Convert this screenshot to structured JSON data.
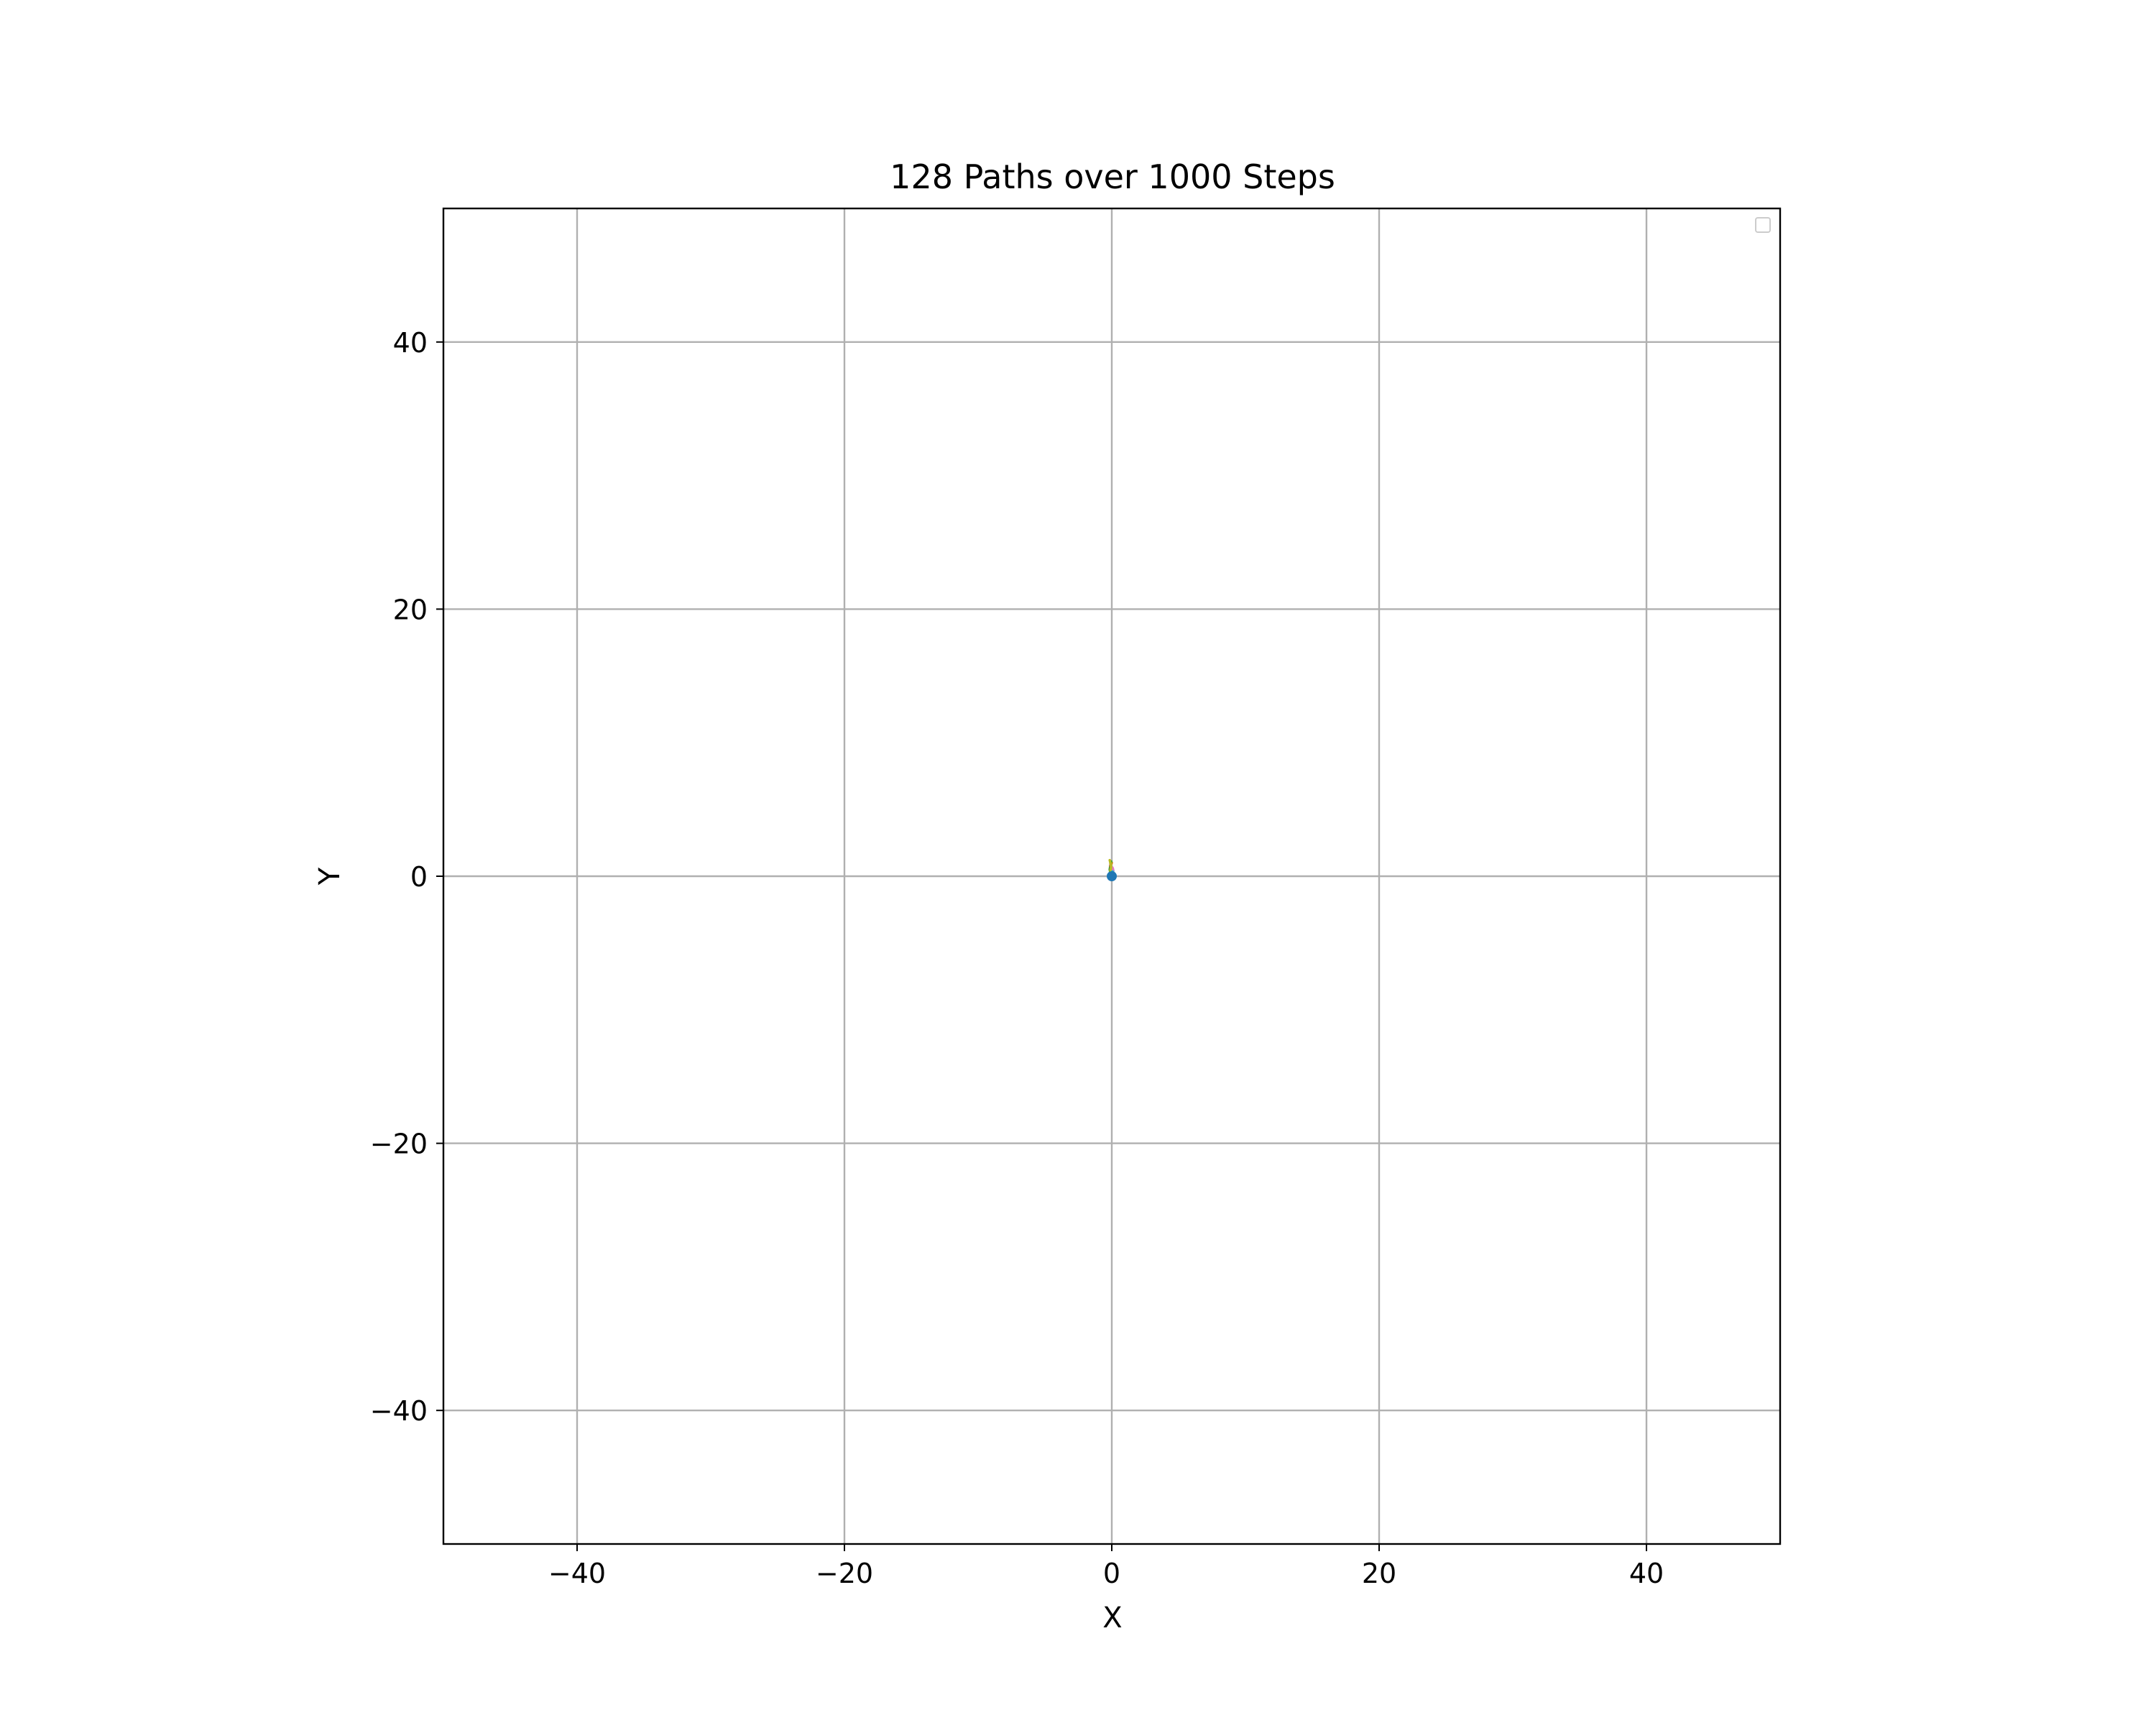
{
  "chart_data": {
    "type": "line",
    "title": "128 Paths over 1000 Steps",
    "xlabel": "X",
    "ylabel": "Y",
    "xlim": [
      -50,
      50
    ],
    "ylim": [
      -50,
      50
    ],
    "xticks": [
      -40,
      -20,
      0,
      20,
      40
    ],
    "yticks": [
      -40,
      -20,
      0,
      20,
      40
    ],
    "xtick_labels": [
      "−40",
      "−20",
      "0",
      "20",
      "40"
    ],
    "ytick_labels": [
      "−40",
      "−20",
      "0",
      "20",
      "40"
    ],
    "grid": true,
    "legend": {
      "placement": "upper right",
      "entries": []
    },
    "series": [
      {
        "color": "#1f77b4",
        "x": [
          0.0,
          0.05,
          0.1,
          0.05,
          0.0
        ],
        "y": [
          0.0,
          0.2,
          0.4,
          0.6,
          0.3
        ]
      },
      {
        "color": "#ff7f0e",
        "x": [
          0.0,
          -0.05,
          -0.1,
          -0.05,
          0.0
        ],
        "y": [
          0.0,
          0.3,
          0.7,
          0.9,
          1.0
        ]
      },
      {
        "color": "#2ca02c",
        "x": [
          0.0,
          -0.1,
          -0.15,
          -0.1,
          -0.05
        ],
        "y": [
          0.0,
          0.25,
          0.5,
          0.8,
          1.1
        ]
      },
      {
        "color": "#d62728",
        "x": [
          0.0,
          0.05,
          0.0,
          -0.05,
          -0.1
        ],
        "y": [
          0.0,
          0.15,
          0.45,
          0.6,
          0.8
        ]
      },
      {
        "color": "#9467bd",
        "x": [
          0.0,
          0.1,
          0.05,
          0.0,
          0.05
        ],
        "y": [
          0.0,
          0.1,
          0.35,
          0.55,
          0.45
        ]
      },
      {
        "color": "#8c564b",
        "x": [
          0.0,
          -0.05,
          -0.1,
          -0.05,
          -0.1
        ],
        "y": [
          0.0,
          0.2,
          0.5,
          0.7,
          0.95
        ]
      },
      {
        "color": "#e377c2",
        "x": [
          0.0,
          0.0,
          0.05,
          0.1,
          0.05
        ],
        "y": [
          0.0,
          0.3,
          0.4,
          0.5,
          0.65
        ]
      },
      {
        "color": "#bcbd22",
        "x": [
          0.0,
          -0.1,
          -0.05,
          -0.1,
          -0.15
        ],
        "y": [
          0.0,
          0.4,
          0.7,
          1.0,
          1.2
        ]
      },
      {
        "color": "#17becf",
        "x": [
          0.0,
          0.05,
          0.1,
          0.05,
          0.1
        ],
        "y": [
          0.0,
          0.15,
          0.25,
          0.35,
          0.2
        ]
      }
    ]
  }
}
